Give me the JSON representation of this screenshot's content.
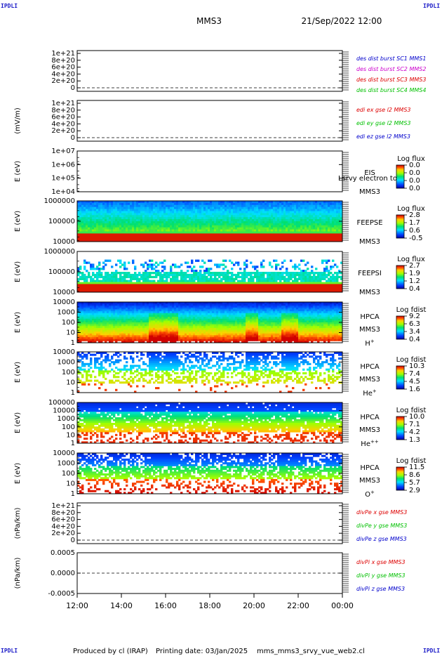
{
  "corner_label": "IPDLI",
  "header": {
    "title": "MMS3",
    "datetime": "21/Sep/2022 12:00"
  },
  "footer": {
    "produced": "Produced by cl (IRAP)",
    "printing": "Printing date: 03/Jan/2025",
    "script": "mms_mms3_srvy_vue_web2.cl"
  },
  "colors": {
    "red": "#dd0000",
    "green": "#00c000",
    "blue": "#0000cc",
    "magenta": "#cc00cc",
    "curve_red": "#ee0000"
  },
  "chart_data": {
    "type": "heatmap",
    "x_ticks": [
      "12:00",
      "14:00",
      "16:00",
      "18:00",
      "20:00",
      "22:00",
      "00:00"
    ],
    "panels": [
      {
        "id": "p1",
        "kind": "line",
        "ylabel": "",
        "ytick_labels": [
          "1e+21",
          "8e+20",
          "6e+20",
          "4e+20",
          "2e+20",
          "0"
        ],
        "zero_line": true,
        "legend": [
          {
            "text": "des dist burst SC1 MMS1",
            "color": "#0000cc"
          },
          {
            "text": "des dist burst SC2 MMS2",
            "color": "#cc00cc"
          },
          {
            "text": "des dist burst SC3 MMS3",
            "color": "#dd0000"
          },
          {
            "text": "des dist burst SC4 MMS4",
            "color": "#00c000"
          }
        ]
      },
      {
        "id": "p2",
        "kind": "line",
        "ylabel": "(mV/m)",
        "ytick_labels": [
          "1e+21",
          "8e+20",
          "6e+20",
          "4e+20",
          "2e+20",
          "0"
        ],
        "zero_line": true,
        "legend": [
          {
            "text": "edi ex gse l2 MMS3",
            "color": "#dd0000"
          },
          {
            "text": "edi ey gse l2 MMS3",
            "color": "#00c000"
          },
          {
            "text": "edi ez gse l2 MMS3",
            "color": "#0000cc"
          }
        ]
      },
      {
        "id": "p3",
        "kind": "empty_spec",
        "ylabel": "E (eV)",
        "ytick_labels": [
          "1e+07",
          "1e+06",
          "1e+05",
          "1e+04"
        ],
        "inst": [
          "EIS",
          "MMS3"
        ],
        "overlay": "Lsrvy electron to",
        "cbar_title": "Log flux",
        "cbar_ticks": [
          "0.0",
          "0.0",
          "0.0",
          "0.0"
        ]
      },
      {
        "id": "p4",
        "kind": "spec",
        "style": "feepse",
        "ylabel": "E (eV)",
        "ytick_labels": [
          "1000000",
          "100000",
          "10000"
        ],
        "inst": [
          "FEEPSE",
          "MMS3"
        ],
        "cbar_title": "Log flux",
        "cbar_ticks": [
          "2.8",
          "1.7",
          "0.6",
          "-0.5"
        ]
      },
      {
        "id": "p5",
        "kind": "spec",
        "style": "feepsi",
        "ylabel": "E (eV)",
        "ytick_labels": [
          "1000000",
          "100000",
          "10000"
        ],
        "inst": [
          "FEEPSI",
          "MMS3"
        ],
        "cbar_title": "Log flux",
        "cbar_ticks": [
          "2.7",
          "1.9",
          "1.2",
          "0.4"
        ]
      },
      {
        "id": "p6",
        "kind": "spec",
        "style": "hplus",
        "ylabel": "E (eV)",
        "ytick_labels": [
          "10000",
          "1000",
          "100",
          "10",
          "1"
        ],
        "inst": [
          "HPCA",
          "MMS3"
        ],
        "species": "H",
        "sup": "+",
        "cbar_title": "Log fdist",
        "cbar_ticks": [
          "9.2",
          "6.3",
          "3.4",
          "0.4"
        ]
      },
      {
        "id": "p7",
        "kind": "spec",
        "style": "heplus",
        "ylabel": "E (eV)",
        "ytick_labels": [
          "10000",
          "1000",
          "100",
          "10",
          "1"
        ],
        "inst": [
          "HPCA",
          "MMS3"
        ],
        "species": "He",
        "sup": "+",
        "cbar_title": "Log fdist",
        "cbar_ticks": [
          "10.3",
          "7.4",
          "4.5",
          "1.6"
        ]
      },
      {
        "id": "p8",
        "kind": "spec",
        "style": "hepp",
        "ylabel": "E (eV)",
        "ytick_labels": [
          "100000",
          "10000",
          "1000",
          "100",
          "10",
          "1"
        ],
        "inst": [
          "HPCA",
          "MMS3"
        ],
        "species": "He",
        "sup": "++",
        "cbar_title": "Log fdist",
        "cbar_ticks": [
          "10.0",
          "7.1",
          "4.2",
          "1.3"
        ]
      },
      {
        "id": "p9",
        "kind": "spec",
        "style": "oplus",
        "ylabel": "E (eV)",
        "ytick_labels": [
          "10000",
          "1000",
          "100",
          "10",
          "1"
        ],
        "inst": [
          "HPCA",
          "MMS3"
        ],
        "species": "O",
        "sup": "+",
        "cbar_title": "Log fdist",
        "cbar_ticks": [
          "11.5",
          "8.6",
          "5.7",
          "2.9"
        ]
      },
      {
        "id": "p10",
        "kind": "line",
        "ylabel": "(nPa/km)",
        "ytick_labels": [
          "1e+21",
          "8e+20",
          "6e+20",
          "4e+20",
          "2e+20",
          "0"
        ],
        "zero_line": true,
        "legend": [
          {
            "text": "divPe x gse MMS3",
            "color": "#dd0000"
          },
          {
            "text": "divPe y gse MMS3",
            "color": "#00c000"
          },
          {
            "text": "divPe z gse MMS3",
            "color": "#0000cc"
          }
        ]
      },
      {
        "id": "p11",
        "kind": "line",
        "ylabel": "(nPa/km)",
        "ytick_labels": [
          "0.0005",
          "0.0000",
          "-0.0005"
        ],
        "zero_line": true,
        "data_from_hour": 23.0,
        "legend": [
          {
            "text": "divPi x gse MMS3",
            "color": "#dd0000"
          },
          {
            "text": "divPi y gse MMS3",
            "color": "#00c000"
          },
          {
            "text": "divPi z gse MMS3",
            "color": "#0000cc"
          }
        ]
      }
    ]
  }
}
